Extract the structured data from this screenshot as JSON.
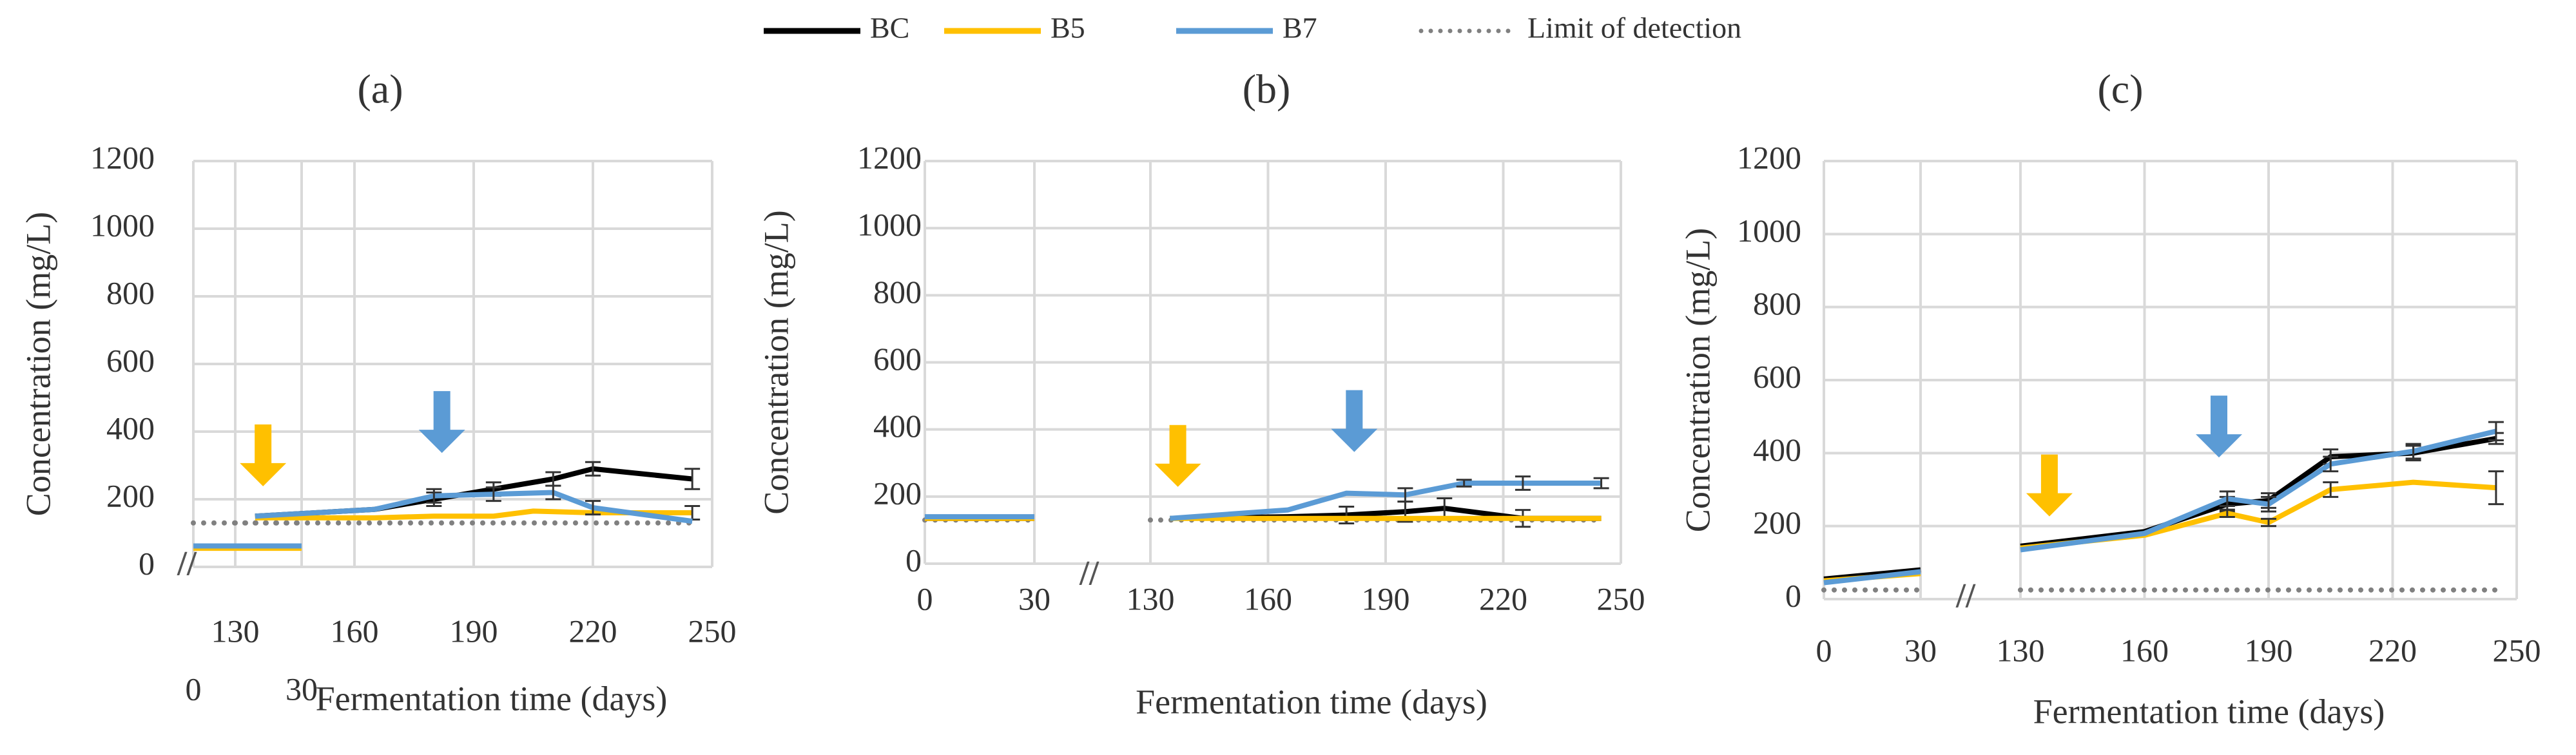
{
  "legend": {
    "items": [
      {
        "label": "BC",
        "color": "#000000",
        "style": "solid"
      },
      {
        "label": "B5",
        "color": "#FFC000",
        "style": "solid"
      },
      {
        "label": "B7",
        "color": "#5B9BD5",
        "style": "solid"
      },
      {
        "label": "Limit of detection",
        "color": "#808080",
        "style": "dotted"
      }
    ]
  },
  "colors": {
    "grid": "#D9D9D9",
    "bc": "#000000",
    "b5": "#FFC000",
    "b7": "#5B9BD5",
    "lod": "#808080",
    "arrow_b5": "#FFC000",
    "arrow_b7": "#5B9BD5"
  },
  "break_symbol": "//",
  "chart_data": [
    {
      "type": "line",
      "panel_label": "(a)",
      "ylabel": "Concentration (mg/L)",
      "xlabel": "Fermentation time (days)",
      "ylim": [
        0,
        1200
      ],
      "yticks": [
        0,
        200,
        400,
        600,
        800,
        1000,
        1200
      ],
      "xticks_early": [
        0,
        30
      ],
      "xticks_late": [
        130,
        160,
        190,
        220,
        250
      ],
      "xlim_late": [
        130,
        250
      ],
      "lod": 130,
      "series": [
        {
          "name": "BC",
          "x_early": [
            0,
            30
          ],
          "y_early": [
            60,
            60
          ],
          "x": [
            135,
            165,
            180,
            195,
            210,
            220,
            245
          ],
          "y": [
            150,
            170,
            200,
            230,
            260,
            290,
            260
          ],
          "err": [
            0,
            0,
            20,
            20,
            20,
            20,
            30
          ]
        },
        {
          "name": "B5",
          "x_early": [
            0,
            30
          ],
          "y_early": [
            55,
            55
          ],
          "x": [
            135,
            165,
            180,
            195,
            205,
            220,
            245
          ],
          "y": [
            145,
            145,
            150,
            150,
            165,
            160,
            160
          ],
          "err": [
            0,
            0,
            0,
            0,
            0,
            0,
            20
          ]
        },
        {
          "name": "B7",
          "x_early": [
            0,
            30
          ],
          "y_early": [
            62,
            62
          ],
          "x": [
            135,
            165,
            180,
            195,
            210,
            220,
            245
          ],
          "y": [
            150,
            170,
            210,
            215,
            220,
            175,
            135
          ],
          "err": [
            0,
            0,
            20,
            20,
            20,
            20,
            0
          ]
        }
      ],
      "annotations": [
        {
          "type": "arrow",
          "series": "B5",
          "x": 137
        },
        {
          "type": "arrow",
          "series": "B7",
          "x": 182
        }
      ]
    },
    {
      "type": "line",
      "panel_label": "(b)",
      "ylabel": "Concentration (mg/L)",
      "xlabel": "Fermentation time (days)",
      "ylim": [
        0,
        1200
      ],
      "yticks": [
        0,
        200,
        400,
        600,
        800,
        1000,
        1200
      ],
      "xticks_early": [
        0,
        30
      ],
      "xticks_late": [
        130,
        160,
        190,
        220,
        250
      ],
      "xlim_late": [
        130,
        250
      ],
      "lod": 130,
      "series": [
        {
          "name": "BC",
          "x_early": [
            0,
            30
          ],
          "y_early": [
            135,
            135
          ],
          "x": [
            135,
            165,
            180,
            195,
            205,
            225,
            245
          ],
          "y": [
            135,
            140,
            145,
            155,
            165,
            135,
            135
          ],
          "err": [
            0,
            0,
            25,
            30,
            30,
            25,
            0
          ]
        },
        {
          "name": "B5",
          "x_early": [
            0,
            30
          ],
          "y_early": [
            135,
            135
          ],
          "x": [
            135,
            165,
            180,
            195,
            205,
            225,
            245
          ],
          "y": [
            135,
            135,
            135,
            135,
            135,
            135,
            135
          ],
          "err": [
            0,
            0,
            0,
            0,
            0,
            0,
            0
          ]
        },
        {
          "name": "B7",
          "x_early": [
            0,
            30
          ],
          "y_early": [
            140,
            140
          ],
          "x": [
            135,
            165,
            180,
            195,
            210,
            225,
            245
          ],
          "y": [
            135,
            160,
            210,
            205,
            240,
            240,
            240
          ],
          "err": [
            0,
            0,
            0,
            20,
            10,
            20,
            15
          ]
        }
      ],
      "annotations": [
        {
          "type": "arrow",
          "series": "B5",
          "x": 137
        },
        {
          "type": "arrow",
          "series": "B7",
          "x": 182
        }
      ]
    },
    {
      "type": "line",
      "panel_label": "(c)",
      "ylabel": "Concentration (mg/L)",
      "xlabel": "Fermentation time (days)",
      "ylim": [
        0,
        1200
      ],
      "yticks": [
        0,
        200,
        400,
        600,
        800,
        1000,
        1200
      ],
      "xticks_early": [
        0,
        30
      ],
      "xticks_late": [
        130,
        160,
        190,
        220,
        250
      ],
      "xlim_late": [
        130,
        250
      ],
      "lod": 25,
      "series": [
        {
          "name": "BC",
          "x_early": [
            0,
            30
          ],
          "y_early": [
            55,
            80
          ],
          "x": [
            130,
            160,
            180,
            190,
            205,
            225,
            245
          ],
          "y": [
            145,
            185,
            260,
            270,
            390,
            400,
            440
          ],
          "err": [
            0,
            0,
            20,
            20,
            20,
            20,
            15
          ]
        },
        {
          "name": "B5",
          "x_early": [
            0,
            30
          ],
          "y_early": [
            50,
            70
          ],
          "x": [
            130,
            160,
            180,
            190,
            205,
            225,
            245
          ],
          "y": [
            140,
            175,
            235,
            210,
            300,
            320,
            305
          ],
          "err": [
            0,
            0,
            10,
            10,
            20,
            0,
            45
          ]
        },
        {
          "name": "B7",
          "x_early": [
            0,
            30
          ],
          "y_early": [
            45,
            75
          ],
          "x": [
            130,
            160,
            180,
            190,
            205,
            225,
            245
          ],
          "y": [
            135,
            180,
            275,
            260,
            370,
            405,
            460
          ],
          "err": [
            0,
            0,
            20,
            20,
            20,
            20,
            25
          ]
        }
      ],
      "annotations": [
        {
          "type": "arrow",
          "series": "B5",
          "x": 137
        },
        {
          "type": "arrow",
          "series": "B7",
          "x": 178
        }
      ]
    }
  ]
}
